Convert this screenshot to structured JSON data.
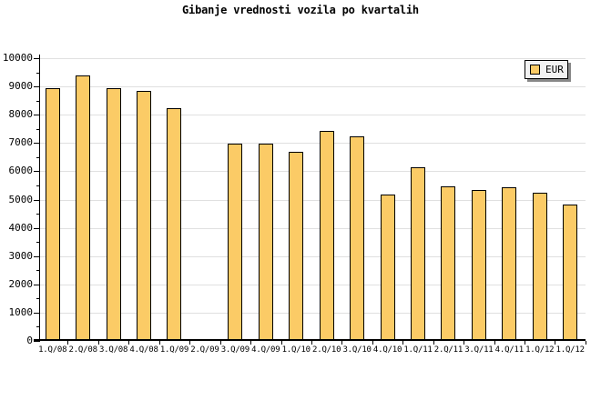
{
  "chart_data": {
    "type": "bar",
    "title": "Gibanje vrednosti vozila po kvartalih",
    "categories": [
      "1.Q/08",
      "2.Q/08",
      "3.Q/08",
      "4.Q/08",
      "1.Q/09",
      "2.Q/09",
      "3.Q/09",
      "4.Q/09",
      "1.Q/10",
      "2.Q/10",
      "3.Q/10",
      "4.Q/10",
      "1.Q/11",
      "2.Q/11",
      "3.Q/11",
      "4.Q/11",
      "1.Q/12",
      "1.Q/12"
    ],
    "series": [
      {
        "name": "EUR",
        "values": [
          8900,
          9350,
          8900,
          8800,
          8200,
          null,
          6950,
          6950,
          6650,
          7400,
          7200,
          5150,
          6100,
          5450,
          5300,
          5400,
          5200,
          4800
        ]
      }
    ],
    "ylim": [
      0,
      10000
    ],
    "ytick_major": 1000,
    "ytick_minor": 500,
    "ytick_labels": [
      "0",
      "1000",
      "2000",
      "3000",
      "4000",
      "5000",
      "6000",
      "7000",
      "8000",
      "9000",
      "10000"
    ],
    "grid": "horizontal-major",
    "legend": {
      "label": "EUR",
      "position": "top-right"
    },
    "colors": {
      "bar_fill": "#FBCB66",
      "bar_border": "#000000",
      "grid_line": "#E0E0E0",
      "axis": "#000000",
      "background": "#FFFFFF",
      "legend_bg": "#F2F2F2",
      "legend_shadow": "#888888"
    }
  }
}
